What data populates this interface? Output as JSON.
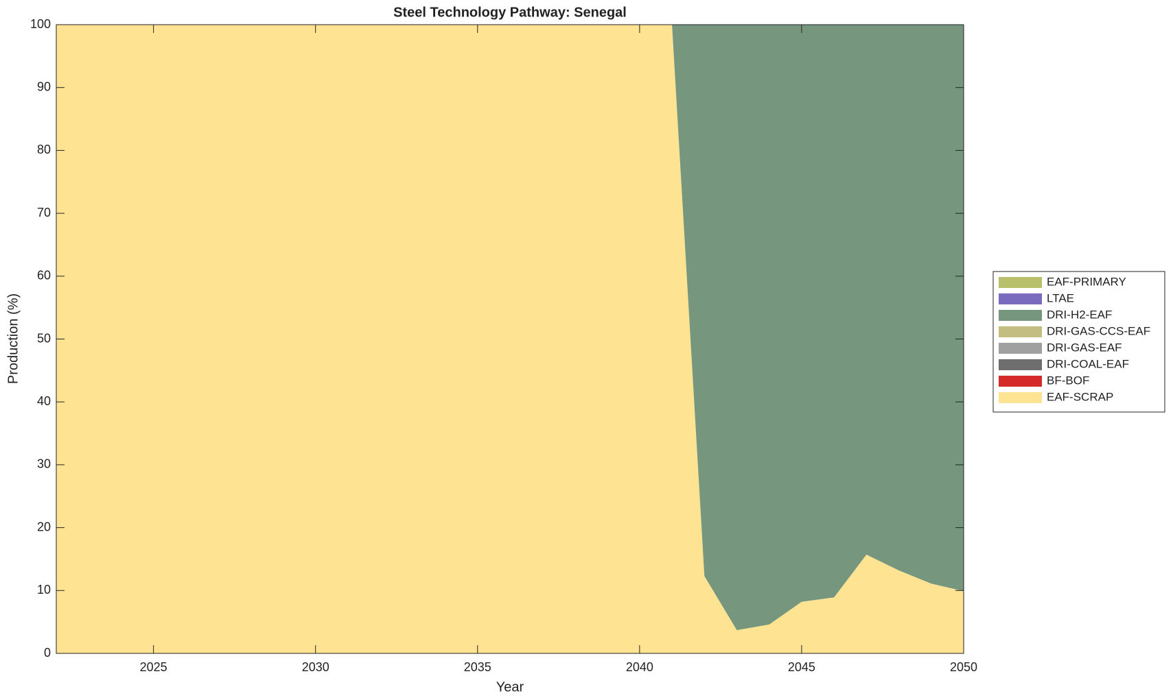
{
  "chart_data": {
    "type": "stacked_area",
    "title": "Steel Technology Pathway: Senegal",
    "xlabel": "Year",
    "ylabel": "Production (%)",
    "x": [
      2022,
      2023,
      2024,
      2025,
      2026,
      2027,
      2028,
      2029,
      2030,
      2031,
      2032,
      2033,
      2034,
      2035,
      2036,
      2037,
      2038,
      2039,
      2040,
      2041,
      2042,
      2043,
      2044,
      2045,
      2046,
      2047,
      2048,
      2049,
      2050
    ],
    "series": [
      {
        "name": "EAF-SCRAP",
        "color": "#fde392",
        "values": [
          100,
          100,
          100,
          100,
          100,
          100,
          100,
          100,
          100,
          100,
          100,
          100,
          100,
          100,
          100,
          100,
          100,
          100,
          100,
          100,
          12.3,
          3.7,
          4.6,
          8.2,
          8.9,
          15.7,
          13.2,
          11.1,
          9.9
        ]
      },
      {
        "name": "BF-BOF",
        "color": "#d42a2a",
        "values": [
          0,
          0,
          0,
          0,
          0,
          0,
          0,
          0,
          0,
          0,
          0,
          0,
          0,
          0,
          0,
          0,
          0,
          0,
          0,
          0,
          0,
          0,
          0,
          0,
          0,
          0,
          0,
          0,
          0
        ]
      },
      {
        "name": "DRI-COAL-EAF",
        "color": "#6e6e6e",
        "values": [
          0,
          0,
          0,
          0,
          0,
          0,
          0,
          0,
          0,
          0,
          0,
          0,
          0,
          0,
          0,
          0,
          0,
          0,
          0,
          0,
          0,
          0,
          0,
          0,
          0,
          0,
          0,
          0,
          0
        ]
      },
      {
        "name": "DRI-GAS-EAF",
        "color": "#a0a0a0",
        "values": [
          0,
          0,
          0,
          0,
          0,
          0,
          0,
          0,
          0,
          0,
          0,
          0,
          0,
          0,
          0,
          0,
          0,
          0,
          0,
          0,
          0,
          0,
          0,
          0,
          0,
          0,
          0,
          0,
          0
        ]
      },
      {
        "name": "DRI-GAS-CCS-EAF",
        "color": "#c4bd81",
        "values": [
          0,
          0,
          0,
          0,
          0,
          0,
          0,
          0,
          0,
          0,
          0,
          0,
          0,
          0,
          0,
          0,
          0,
          0,
          0,
          0,
          0,
          0,
          0,
          0,
          0,
          0,
          0,
          0,
          0
        ]
      },
      {
        "name": "DRI-H2-EAF",
        "color": "#76977d",
        "values": [
          0,
          0,
          0,
          0,
          0,
          0,
          0,
          0,
          0,
          0,
          0,
          0,
          0,
          0,
          0,
          0,
          0,
          0,
          0,
          0,
          87.7,
          96.3,
          95.4,
          91.8,
          91.1,
          84.3,
          86.8,
          88.9,
          90.1
        ]
      },
      {
        "name": "LTAE",
        "color": "#7b6bbf",
        "values": [
          0,
          0,
          0,
          0,
          0,
          0,
          0,
          0,
          0,
          0,
          0,
          0,
          0,
          0,
          0,
          0,
          0,
          0,
          0,
          0,
          0,
          0,
          0,
          0,
          0,
          0,
          0,
          0,
          0
        ]
      },
      {
        "name": "EAF-PRIMARY",
        "color": "#b9c06b",
        "values": [
          0,
          0,
          0,
          0,
          0,
          0,
          0,
          0,
          0,
          0,
          0,
          0,
          0,
          0,
          0,
          0,
          0,
          0,
          0,
          0,
          0,
          0,
          0,
          0,
          0,
          0,
          0,
          0,
          0
        ]
      }
    ],
    "xlim": [
      2022,
      2050
    ],
    "xticks": [
      2025,
      2030,
      2035,
      2040,
      2045,
      2050
    ],
    "ylim": [
      0,
      100
    ],
    "yticks": [
      0,
      10,
      20,
      30,
      40,
      50,
      60,
      70,
      80,
      90,
      100
    ],
    "grid": false,
    "legend": "right"
  }
}
